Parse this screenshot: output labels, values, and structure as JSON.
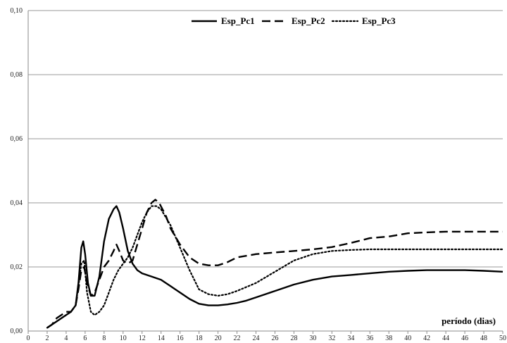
{
  "chart_data": {
    "type": "line",
    "xlabel": "período (dias)",
    "ylabel": "",
    "xlim": [
      0,
      50
    ],
    "ylim": [
      0,
      0.1
    ],
    "grid": true,
    "legend_position": "top",
    "x_ticks": [
      "0",
      "2",
      "4",
      "6",
      "8",
      "10",
      "12",
      "14",
      "16",
      "18",
      "20",
      "22",
      "24",
      "26",
      "28",
      "30",
      "32",
      "34",
      "36",
      "38",
      "40",
      "42",
      "44",
      "46",
      "48",
      "50"
    ],
    "y_ticks": [
      "0,00",
      "0,02",
      "0,04",
      "0,06",
      "0,08",
      "0,10"
    ],
    "series": [
      {
        "name": "Esp_Pc1",
        "style": "solid",
        "color": "#000000",
        "x": [
          2,
          2.5,
          3,
          3.5,
          4,
          4.5,
          5,
          5.3,
          5.6,
          5.8,
          6,
          6.3,
          6.6,
          7,
          7.5,
          8,
          8.5,
          9,
          9.3,
          9.6,
          10,
          10.5,
          11,
          11.5,
          12,
          13,
          14,
          15,
          16,
          17,
          18,
          19,
          20,
          21,
          22,
          23,
          24,
          26,
          28,
          30,
          32,
          34,
          36,
          38,
          40,
          42,
          44,
          46,
          48,
          50
        ],
        "y": [
          0.001,
          0.002,
          0.003,
          0.004,
          0.005,
          0.006,
          0.008,
          0.015,
          0.026,
          0.028,
          0.024,
          0.015,
          0.011,
          0.011,
          0.017,
          0.028,
          0.035,
          0.038,
          0.039,
          0.037,
          0.032,
          0.025,
          0.021,
          0.019,
          0.018,
          0.017,
          0.016,
          0.014,
          0.012,
          0.01,
          0.0085,
          0.008,
          0.008,
          0.0083,
          0.0088,
          0.0095,
          0.0105,
          0.0125,
          0.0145,
          0.016,
          0.017,
          0.0175,
          0.018,
          0.0185,
          0.0188,
          0.019,
          0.019,
          0.019,
          0.0188,
          0.0185
        ]
      },
      {
        "name": "Esp_Pc2",
        "style": "dashed",
        "color": "#000000",
        "x": [
          2,
          2.5,
          3,
          3.5,
          4,
          4.5,
          5,
          5.3,
          5.6,
          5.9,
          6.2,
          6.6,
          7,
          7.5,
          8,
          8.5,
          9,
          9.3,
          9.6,
          10,
          10.5,
          11,
          11.5,
          12,
          12.5,
          13,
          13.4,
          13.8,
          14.5,
          15,
          16,
          17,
          18,
          19,
          20,
          21,
          22,
          24,
          26,
          28,
          30,
          32,
          34,
          36,
          38,
          40,
          42,
          44,
          46,
          48,
          50
        ],
        "y": [
          0.001,
          0.002,
          0.004,
          0.005,
          0.006,
          0.006,
          0.008,
          0.013,
          0.019,
          0.02,
          0.015,
          0.011,
          0.012,
          0.016,
          0.02,
          0.022,
          0.025,
          0.027,
          0.025,
          0.022,
          0.021,
          0.022,
          0.027,
          0.032,
          0.037,
          0.04,
          0.041,
          0.04,
          0.036,
          0.032,
          0.027,
          0.023,
          0.021,
          0.0205,
          0.0205,
          0.0215,
          0.023,
          0.024,
          0.0245,
          0.025,
          0.0255,
          0.0262,
          0.0275,
          0.029,
          0.0295,
          0.0305,
          0.0308,
          0.031,
          0.031,
          0.031,
          0.031
        ]
      },
      {
        "name": "Esp_Pc3",
        "style": "dotted",
        "color": "#000000",
        "x": [
          2,
          2.5,
          3,
          3.5,
          4,
          4.5,
          5,
          5.3,
          5.6,
          5.9,
          6.2,
          6.6,
          7,
          7.5,
          8,
          8.5,
          9,
          9.5,
          10,
          10.5,
          11,
          11.5,
          12,
          12.5,
          13,
          13.5,
          14,
          15,
          16,
          17,
          18,
          19,
          20,
          21,
          22,
          24,
          26,
          28,
          30,
          32,
          34,
          36,
          38,
          40,
          42,
          44,
          46,
          48,
          50
        ],
        "y": [
          0.001,
          0.002,
          0.003,
          0.004,
          0.005,
          0.006,
          0.008,
          0.014,
          0.021,
          0.022,
          0.012,
          0.006,
          0.005,
          0.006,
          0.008,
          0.012,
          0.016,
          0.019,
          0.021,
          0.023,
          0.026,
          0.03,
          0.034,
          0.037,
          0.039,
          0.039,
          0.038,
          0.033,
          0.026,
          0.019,
          0.013,
          0.0115,
          0.011,
          0.0115,
          0.0125,
          0.015,
          0.0185,
          0.022,
          0.024,
          0.025,
          0.0253,
          0.0255,
          0.0255,
          0.0255,
          0.0255,
          0.0255,
          0.0255,
          0.0255,
          0.0255
        ]
      }
    ]
  }
}
